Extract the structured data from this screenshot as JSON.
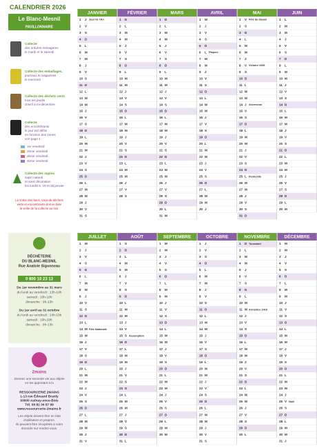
{
  "left": {
    "title": "CALENDRIER 2026",
    "city": "Le Blanc-Mesnil",
    "zone": "PAVILLONNAIRE",
    "items": [
      {
        "lines": [
          "Collecte",
          "des ordures ménagères",
          "le mardi et le samedi"
        ]
      },
      {
        "lines": [
          "Collecte des emballages,",
          "journaux & magazines",
          "le mercredi"
        ]
      },
      {
        "lines": [
          "Collecte des déchets verts",
          "tous les jeudis",
          "d'avril à mi-décembre"
        ]
      },
      {
        "lines": [
          "Collecte",
          "des encombrants",
          "le jour est défini",
          "en fonction des zones",
          "voir page 1"
        ]
      }
    ],
    "fridays": [
      "1er vendredi",
      "2ème vendredi",
      "3ème vendredi",
      "4ème vendredi"
    ],
    "sapins": [
      "Collecte des sapins",
      "sapin naturel",
      "et sans décoration",
      "les lundis 5, 19 et 26 janvier"
    ],
    "warning": [
      "La sortie des bacs, sacs de déchets",
      "verts et encombrants doit se faire",
      "la veille de la collecte au soir."
    ]
  },
  "dechetterie": {
    "title": [
      "DÉCHÈTERIE",
      "DU BLANC-MESNIL",
      "Rue Anatole Sigonneau"
    ],
    "phone": "0 800 10 23 13",
    "winter": [
      "Du 1er novembre au 31 mars",
      "du lundi au vendredi : 13h-18h",
      "samedi : 10h-18h",
      "dimanche : 9h-13h"
    ],
    "summer": [
      "Du 1er avril au 31 octobre",
      "du lundi au vendredi : 14h-19h",
      "samedi : 10h-19h",
      "dimanche : 9h-13h"
    ]
  },
  "ressourcerie": {
    "logo": "2mains",
    "intro": [
      "Donnez une seconde vie aux objets",
      "en les apportant à la"
    ],
    "address": [
      "RESSOURCERIE 2MAINS",
      "1-13 rue Édouard Branly",
      "93600 Aulnay-sous-Bois",
      "Tél. 09 82 34 87 99",
      "www.ressourcerie-2mains.fr"
    ],
    "note": [
      "Les objets doivent être en état",
      "d'utilisation et propres.",
      "Ils peuvent être récupérés à votre",
      "domicile sur rendez-vous."
    ]
  },
  "calendars": [
    {
      "months": [
        {
          "name": "JANVIER",
          "days": [
            1,
            2,
            3,
            4,
            5,
            6,
            7,
            8,
            9,
            10,
            11,
            12,
            13,
            14,
            15,
            16,
            17,
            18,
            19,
            20,
            21,
            22,
            23,
            24,
            25,
            26,
            27,
            28,
            29,
            30,
            31
          ],
          "weekdays": [
            "J",
            "V",
            "S",
            "D",
            "L",
            "M",
            "M",
            "J",
            "V",
            "S",
            "D",
            "L",
            "M",
            "M",
            "J",
            "V",
            "S",
            "D",
            "L",
            "M",
            "M",
            "J",
            "V",
            "S",
            "D",
            "L",
            "M",
            "M",
            "J",
            "V",
            "S"
          ],
          "notes": [
            {
              "day": 1,
              "text": "Jour de l'An"
            }
          ]
        },
        {
          "name": "FÉVRIER",
          "days": [
            1,
            2,
            3,
            4,
            5,
            6,
            7,
            8,
            9,
            10,
            11,
            12,
            13,
            14,
            15,
            16,
            17,
            18,
            19,
            20,
            21,
            22,
            23,
            24,
            25,
            26,
            27,
            28
          ],
          "weekdays": [
            "D",
            "L",
            "M",
            "M",
            "J",
            "V",
            "S",
            "D",
            "L",
            "M",
            "M",
            "J",
            "V",
            "S",
            "D",
            "L",
            "M",
            "M",
            "J",
            "V",
            "S",
            "D",
            "L",
            "M",
            "M",
            "J",
            "V",
            "S"
          ],
          "notes": []
        },
        {
          "name": "MARS",
          "days": [
            1,
            2,
            3,
            4,
            5,
            6,
            7,
            8,
            9,
            10,
            11,
            12,
            13,
            14,
            15,
            16,
            17,
            18,
            19,
            20,
            21,
            22,
            23,
            24,
            25,
            26,
            27,
            28,
            29,
            30,
            31
          ],
          "weekdays": [
            "D",
            "L",
            "M",
            "M",
            "J",
            "V",
            "S",
            "D",
            "L",
            "M",
            "M",
            "J",
            "V",
            "S",
            "D",
            "L",
            "M",
            "M",
            "J",
            "V",
            "S",
            "D",
            "L",
            "M",
            "M",
            "J",
            "V",
            "S",
            "D",
            "L",
            "M"
          ],
          "notes": []
        },
        {
          "name": "AVRIL",
          "days": [
            1,
            2,
            3,
            4,
            5,
            6,
            7,
            8,
            9,
            10,
            11,
            12,
            13,
            14,
            15,
            16,
            17,
            18,
            19,
            20,
            21,
            22,
            23,
            24,
            25,
            26,
            27,
            28,
            29,
            30
          ],
          "weekdays": [
            "M",
            "J",
            "V",
            "S",
            "D",
            "L",
            "M",
            "M",
            "J",
            "V",
            "S",
            "D",
            "L",
            "M",
            "M",
            "J",
            "V",
            "S",
            "D",
            "L",
            "M",
            "M",
            "J",
            "V",
            "S",
            "D",
            "L",
            "M",
            "M",
            "J"
          ],
          "notes": [
            {
              "day": 6,
              "text": "Pâques"
            }
          ]
        },
        {
          "name": "MAI",
          "days": [
            1,
            2,
            3,
            4,
            5,
            6,
            7,
            8,
            9,
            10,
            11,
            12,
            13,
            14,
            15,
            16,
            17,
            18,
            19,
            20,
            21,
            22,
            23,
            24,
            25,
            26,
            27,
            28,
            29,
            30,
            31
          ],
          "weekdays": [
            "V",
            "S",
            "D",
            "L",
            "M",
            "M",
            "J",
            "V",
            "S",
            "D",
            "L",
            "M",
            "M",
            "J",
            "V",
            "S",
            "D",
            "L",
            "M",
            "M",
            "J",
            "V",
            "S",
            "D",
            "L",
            "M",
            "M",
            "J",
            "V",
            "S",
            "D"
          ],
          "notes": [
            {
              "day": 1,
              "text": "Fête du travail"
            },
            {
              "day": 8,
              "text": "Victoire 1945"
            },
            {
              "day": 14,
              "text": "Ascension"
            },
            {
              "day": 25,
              "text": "Pentecôte"
            }
          ]
        },
        {
          "name": "JUIN",
          "days": [
            1,
            2,
            3,
            4,
            5,
            6,
            7,
            8,
            9,
            10,
            11,
            12,
            13,
            14,
            15,
            16,
            17,
            18,
            19,
            20,
            21,
            22,
            23,
            24,
            25,
            26,
            27,
            28,
            29,
            30
          ],
          "weekdays": [
            "L",
            "M",
            "M",
            "J",
            "V",
            "S",
            "D",
            "L",
            "M",
            "M",
            "J",
            "V",
            "S",
            "D",
            "L",
            "M",
            "M",
            "J",
            "V",
            "S",
            "D",
            "L",
            "M",
            "M",
            "J",
            "V",
            "S",
            "D",
            "L",
            "M"
          ],
          "notes": []
        }
      ]
    },
    {
      "months": [
        {
          "name": "JUILLET",
          "days": [
            1,
            2,
            3,
            4,
            5,
            6,
            7,
            8,
            9,
            10,
            11,
            12,
            13,
            14,
            15,
            16,
            17,
            18,
            19,
            20,
            21,
            22,
            23,
            24,
            25,
            26,
            27,
            28,
            29,
            30,
            31
          ],
          "weekdays": [
            "M",
            "J",
            "V",
            "S",
            "D",
            "L",
            "M",
            "M",
            "J",
            "V",
            "S",
            "D",
            "L",
            "M",
            "M",
            "J",
            "V",
            "S",
            "D",
            "L",
            "M",
            "M",
            "J",
            "V",
            "S",
            "D",
            "L",
            "M",
            "M",
            "J",
            "V"
          ],
          "notes": [
            {
              "day": 14,
              "text": "Fête Nationale"
            }
          ]
        },
        {
          "name": "AOÛT",
          "days": [
            1,
            2,
            3,
            4,
            5,
            6,
            7,
            8,
            9,
            10,
            11,
            12,
            13,
            14,
            15,
            16,
            17,
            18,
            19,
            20,
            21,
            22,
            23,
            24,
            25,
            26,
            27,
            28,
            29,
            30,
            31
          ],
          "weekdays": [
            "S",
            "D",
            "L",
            "M",
            "M",
            "J",
            "V",
            "S",
            "D",
            "L",
            "M",
            "M",
            "J",
            "V",
            "S",
            "D",
            "L",
            "M",
            "M",
            "J",
            "V",
            "S",
            "D",
            "L",
            "M",
            "M",
            "J",
            "V",
            "S",
            "D",
            "L"
          ],
          "notes": [
            {
              "day": 15,
              "text": "Assomption"
            }
          ]
        },
        {
          "name": "SEPTEMBRE",
          "days": [
            1,
            2,
            3,
            4,
            5,
            6,
            7,
            8,
            9,
            10,
            11,
            12,
            13,
            14,
            15,
            16,
            17,
            18,
            19,
            20,
            21,
            22,
            23,
            24,
            25,
            26,
            27,
            28,
            29,
            30
          ],
          "weekdays": [
            "M",
            "M",
            "J",
            "V",
            "S",
            "D",
            "L",
            "M",
            "M",
            "J",
            "V",
            "S",
            "D",
            "L",
            "M",
            "M",
            "J",
            "V",
            "S",
            "D",
            "L",
            "M",
            "M",
            "J",
            "V",
            "S",
            "D",
            "L",
            "M",
            "M"
          ],
          "notes": []
        },
        {
          "name": "OCTOBRE",
          "days": [
            1,
            2,
            3,
            4,
            5,
            6,
            7,
            8,
            9,
            10,
            11,
            12,
            13,
            14,
            15,
            16,
            17,
            18,
            19,
            20,
            21,
            22,
            23,
            24,
            25,
            26,
            27,
            28,
            29,
            30,
            31
          ],
          "weekdays": [
            "J",
            "V",
            "S",
            "D",
            "L",
            "M",
            "M",
            "J",
            "V",
            "S",
            "D",
            "L",
            "M",
            "M",
            "J",
            "V",
            "S",
            "D",
            "L",
            "M",
            "M",
            "J",
            "V",
            "S",
            "D",
            "L",
            "M",
            "M",
            "J",
            "V",
            "S"
          ],
          "notes": []
        },
        {
          "name": "NOVEMBRE",
          "days": [
            1,
            2,
            3,
            4,
            5,
            6,
            7,
            8,
            9,
            10,
            11,
            12,
            13,
            14,
            15,
            16,
            17,
            18,
            19,
            20,
            21,
            22,
            23,
            24,
            25,
            26,
            27,
            28,
            29,
            30
          ],
          "weekdays": [
            "D",
            "L",
            "M",
            "M",
            "J",
            "V",
            "S",
            "D",
            "L",
            "M",
            "M",
            "J",
            "V",
            "S",
            "D",
            "L",
            "M",
            "M",
            "J",
            "V",
            "S",
            "D",
            "L",
            "M",
            "M",
            "J",
            "V",
            "S",
            "D",
            "L"
          ],
          "notes": [
            {
              "day": 1,
              "text": "Toussaint"
            },
            {
              "day": 11,
              "text": "Armistice 1918"
            }
          ]
        },
        {
          "name": "DÉCEMBRE",
          "days": [
            1,
            2,
            3,
            4,
            5,
            6,
            7,
            8,
            9,
            10,
            11,
            12,
            13,
            14,
            15,
            16,
            17,
            18,
            19,
            20,
            21,
            22,
            23,
            24,
            25,
            26,
            27,
            28,
            29,
            30,
            31
          ],
          "weekdays": [
            "M",
            "M",
            "J",
            "V",
            "S",
            "D",
            "L",
            "M",
            "M",
            "J",
            "V",
            "S",
            "D",
            "L",
            "M",
            "M",
            "J",
            "V",
            "S",
            "D",
            "L",
            "M",
            "M",
            "J",
            "V",
            "S",
            "D",
            "L",
            "M",
            "M",
            "J"
          ],
          "notes": [
            {
              "day": 25,
              "text": "Noël"
            }
          ]
        }
      ]
    }
  ]
}
